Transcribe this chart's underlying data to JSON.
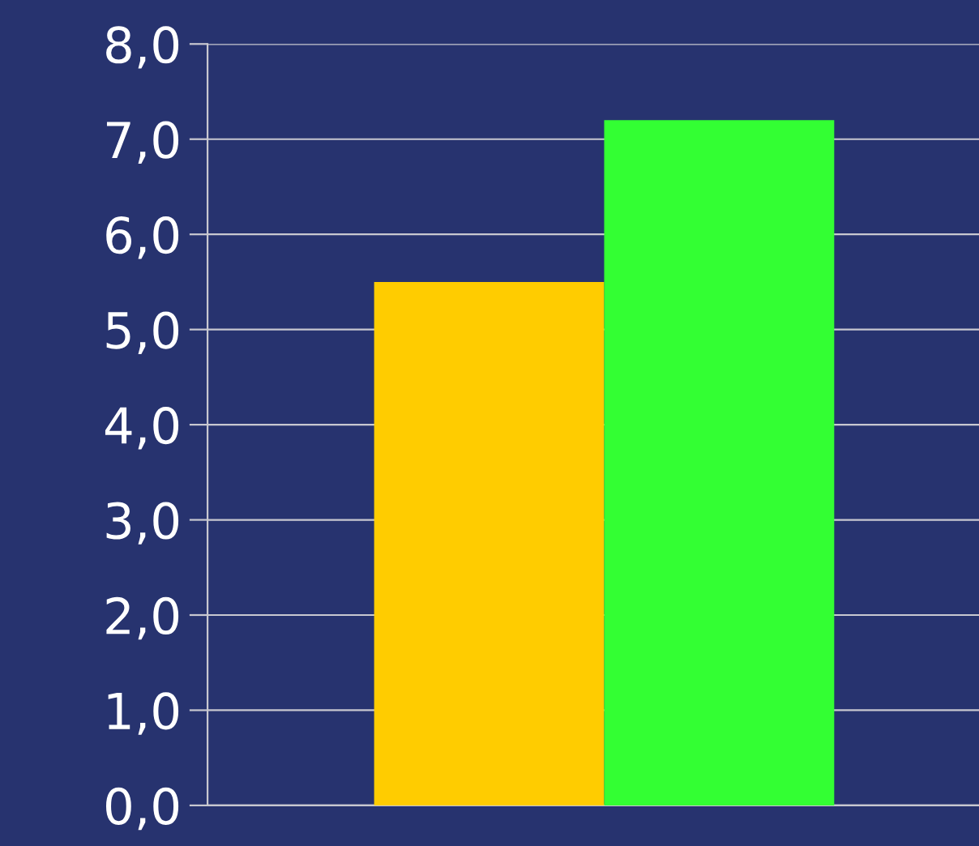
{
  "chart_data": {
    "type": "bar",
    "categories": [
      null
    ],
    "series": [
      {
        "color": "#ffcc00",
        "values": [
          5.5
        ]
      },
      {
        "color": "#33ff33",
        "values": [
          7.2
        ]
      }
    ],
    "ylim": [
      0,
      8
    ],
    "yticks": [
      {
        "value": 0,
        "label": "0,0"
      },
      {
        "value": 1,
        "label": "1,0"
      },
      {
        "value": 2,
        "label": "2,0"
      },
      {
        "value": 3,
        "label": "3,0"
      },
      {
        "value": 4,
        "label": "4,0"
      },
      {
        "value": 5,
        "label": "5,0"
      },
      {
        "value": 6,
        "label": "6,0"
      },
      {
        "value": 7,
        "label": "7,0"
      },
      {
        "value": 8,
        "label": "8,0"
      }
    ],
    "grid": "y"
  }
}
